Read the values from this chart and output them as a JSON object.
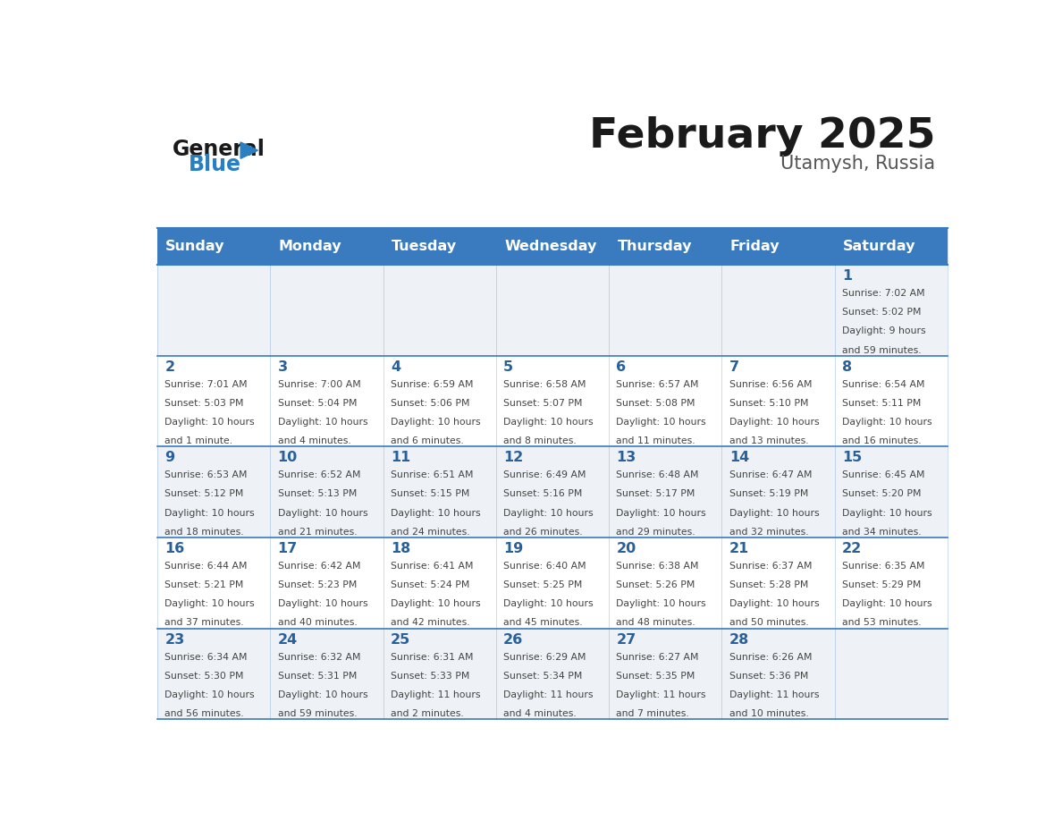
{
  "title": "February 2025",
  "subtitle": "Utamysh, Russia",
  "days_of_week": [
    "Sunday",
    "Monday",
    "Tuesday",
    "Wednesday",
    "Thursday",
    "Friday",
    "Saturday"
  ],
  "header_bg": "#3a7abf",
  "header_text": "#ffffff",
  "cell_bg_odd": "#eef2f7",
  "cell_bg_even": "#ffffff",
  "day_number_color": "#2a6099",
  "text_color": "#444444",
  "line_color": "#3a7abf",
  "logo_general_color": "#1a1a1a",
  "logo_blue_color": "#2a7fc1",
  "calendar_data": [
    {
      "day": 1,
      "col": 6,
      "row": 0,
      "sunrise": "7:02 AM",
      "sunset": "5:02 PM",
      "daylight": "9 hours",
      "daylight2": "and 59 minutes."
    },
    {
      "day": 2,
      "col": 0,
      "row": 1,
      "sunrise": "7:01 AM",
      "sunset": "5:03 PM",
      "daylight": "10 hours",
      "daylight2": "and 1 minute."
    },
    {
      "day": 3,
      "col": 1,
      "row": 1,
      "sunrise": "7:00 AM",
      "sunset": "5:04 PM",
      "daylight": "10 hours",
      "daylight2": "and 4 minutes."
    },
    {
      "day": 4,
      "col": 2,
      "row": 1,
      "sunrise": "6:59 AM",
      "sunset": "5:06 PM",
      "daylight": "10 hours",
      "daylight2": "and 6 minutes."
    },
    {
      "day": 5,
      "col": 3,
      "row": 1,
      "sunrise": "6:58 AM",
      "sunset": "5:07 PM",
      "daylight": "10 hours",
      "daylight2": "and 8 minutes."
    },
    {
      "day": 6,
      "col": 4,
      "row": 1,
      "sunrise": "6:57 AM",
      "sunset": "5:08 PM",
      "daylight": "10 hours",
      "daylight2": "and 11 minutes."
    },
    {
      "day": 7,
      "col": 5,
      "row": 1,
      "sunrise": "6:56 AM",
      "sunset": "5:10 PM",
      "daylight": "10 hours",
      "daylight2": "and 13 minutes."
    },
    {
      "day": 8,
      "col": 6,
      "row": 1,
      "sunrise": "6:54 AM",
      "sunset": "5:11 PM",
      "daylight": "10 hours",
      "daylight2": "and 16 minutes."
    },
    {
      "day": 9,
      "col": 0,
      "row": 2,
      "sunrise": "6:53 AM",
      "sunset": "5:12 PM",
      "daylight": "10 hours",
      "daylight2": "and 18 minutes."
    },
    {
      "day": 10,
      "col": 1,
      "row": 2,
      "sunrise": "6:52 AM",
      "sunset": "5:13 PM",
      "daylight": "10 hours",
      "daylight2": "and 21 minutes."
    },
    {
      "day": 11,
      "col": 2,
      "row": 2,
      "sunrise": "6:51 AM",
      "sunset": "5:15 PM",
      "daylight": "10 hours",
      "daylight2": "and 24 minutes."
    },
    {
      "day": 12,
      "col": 3,
      "row": 2,
      "sunrise": "6:49 AM",
      "sunset": "5:16 PM",
      "daylight": "10 hours",
      "daylight2": "and 26 minutes."
    },
    {
      "day": 13,
      "col": 4,
      "row": 2,
      "sunrise": "6:48 AM",
      "sunset": "5:17 PM",
      "daylight": "10 hours",
      "daylight2": "and 29 minutes."
    },
    {
      "day": 14,
      "col": 5,
      "row": 2,
      "sunrise": "6:47 AM",
      "sunset": "5:19 PM",
      "daylight": "10 hours",
      "daylight2": "and 32 minutes."
    },
    {
      "day": 15,
      "col": 6,
      "row": 2,
      "sunrise": "6:45 AM",
      "sunset": "5:20 PM",
      "daylight": "10 hours",
      "daylight2": "and 34 minutes."
    },
    {
      "day": 16,
      "col": 0,
      "row": 3,
      "sunrise": "6:44 AM",
      "sunset": "5:21 PM",
      "daylight": "10 hours",
      "daylight2": "and 37 minutes."
    },
    {
      "day": 17,
      "col": 1,
      "row": 3,
      "sunrise": "6:42 AM",
      "sunset": "5:23 PM",
      "daylight": "10 hours",
      "daylight2": "and 40 minutes."
    },
    {
      "day": 18,
      "col": 2,
      "row": 3,
      "sunrise": "6:41 AM",
      "sunset": "5:24 PM",
      "daylight": "10 hours",
      "daylight2": "and 42 minutes."
    },
    {
      "day": 19,
      "col": 3,
      "row": 3,
      "sunrise": "6:40 AM",
      "sunset": "5:25 PM",
      "daylight": "10 hours",
      "daylight2": "and 45 minutes."
    },
    {
      "day": 20,
      "col": 4,
      "row": 3,
      "sunrise": "6:38 AM",
      "sunset": "5:26 PM",
      "daylight": "10 hours",
      "daylight2": "and 48 minutes."
    },
    {
      "day": 21,
      "col": 5,
      "row": 3,
      "sunrise": "6:37 AM",
      "sunset": "5:28 PM",
      "daylight": "10 hours",
      "daylight2": "and 50 minutes."
    },
    {
      "day": 22,
      "col": 6,
      "row": 3,
      "sunrise": "6:35 AM",
      "sunset": "5:29 PM",
      "daylight": "10 hours",
      "daylight2": "and 53 minutes."
    },
    {
      "day": 23,
      "col": 0,
      "row": 4,
      "sunrise": "6:34 AM",
      "sunset": "5:30 PM",
      "daylight": "10 hours",
      "daylight2": "and 56 minutes."
    },
    {
      "day": 24,
      "col": 1,
      "row": 4,
      "sunrise": "6:32 AM",
      "sunset": "5:31 PM",
      "daylight": "10 hours",
      "daylight2": "and 59 minutes."
    },
    {
      "day": 25,
      "col": 2,
      "row": 4,
      "sunrise": "6:31 AM",
      "sunset": "5:33 PM",
      "daylight": "11 hours",
      "daylight2": "and 2 minutes."
    },
    {
      "day": 26,
      "col": 3,
      "row": 4,
      "sunrise": "6:29 AM",
      "sunset": "5:34 PM",
      "daylight": "11 hours",
      "daylight2": "and 4 minutes."
    },
    {
      "day": 27,
      "col": 4,
      "row": 4,
      "sunrise": "6:27 AM",
      "sunset": "5:35 PM",
      "daylight": "11 hours",
      "daylight2": "and 7 minutes."
    },
    {
      "day": 28,
      "col": 5,
      "row": 4,
      "sunrise": "6:26 AM",
      "sunset": "5:36 PM",
      "daylight": "11 hours",
      "daylight2": "and 10 minutes."
    }
  ]
}
